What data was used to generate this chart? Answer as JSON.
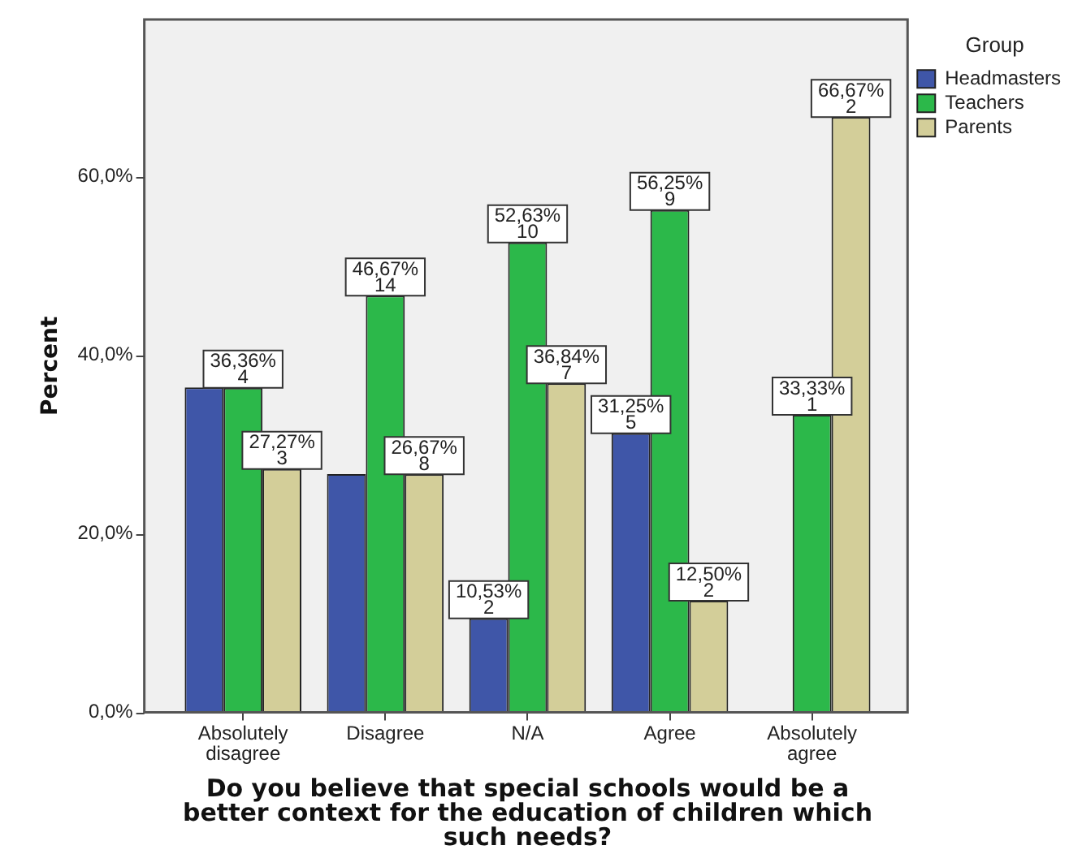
{
  "chart_data": {
    "type": "bar",
    "xlabel": "Do you believe that special schools would be a better context for the education of children which such needs?",
    "ylabel": "Percent",
    "legend_title": "Group",
    "categories": [
      "Absolutely disagree",
      "Disagree",
      "N/A",
      "Agree",
      "Absolutely agree"
    ],
    "series": [
      {
        "name": "Headmasters",
        "color": "#3f56a8",
        "values": [
          36.4,
          26.7,
          10.53,
          31.25,
          null
        ],
        "value_labels": [
          null,
          null,
          "10,53%\n2",
          "31,25%\n5",
          null
        ]
      },
      {
        "name": "Teachers",
        "color": "#2cb84a",
        "values": [
          36.36,
          46.67,
          52.63,
          56.25,
          33.33
        ],
        "value_labels": [
          "36,36%\n4",
          "46,67%\n14",
          "52,63%\n10",
          "56,25%\n9",
          "33,33%\n1"
        ]
      },
      {
        "name": "Parents",
        "color": "#d3ce99",
        "values": [
          27.27,
          26.67,
          36.84,
          12.5,
          66.67
        ],
        "value_labels": [
          "27,27%\n3",
          "26,67%\n8",
          "36,84%\n7",
          "12,50%\n2",
          "66,67%\n2"
        ]
      }
    ],
    "ylim": [
      0,
      77.6
    ],
    "yticks": [
      {
        "value": 0,
        "label": "0,0%"
      },
      {
        "value": 20,
        "label": "20,0%"
      },
      {
        "value": 40,
        "label": "40,0%"
      },
      {
        "value": 60,
        "label": "60,0%"
      }
    ],
    "grid": false,
    "legend": "top right"
  }
}
